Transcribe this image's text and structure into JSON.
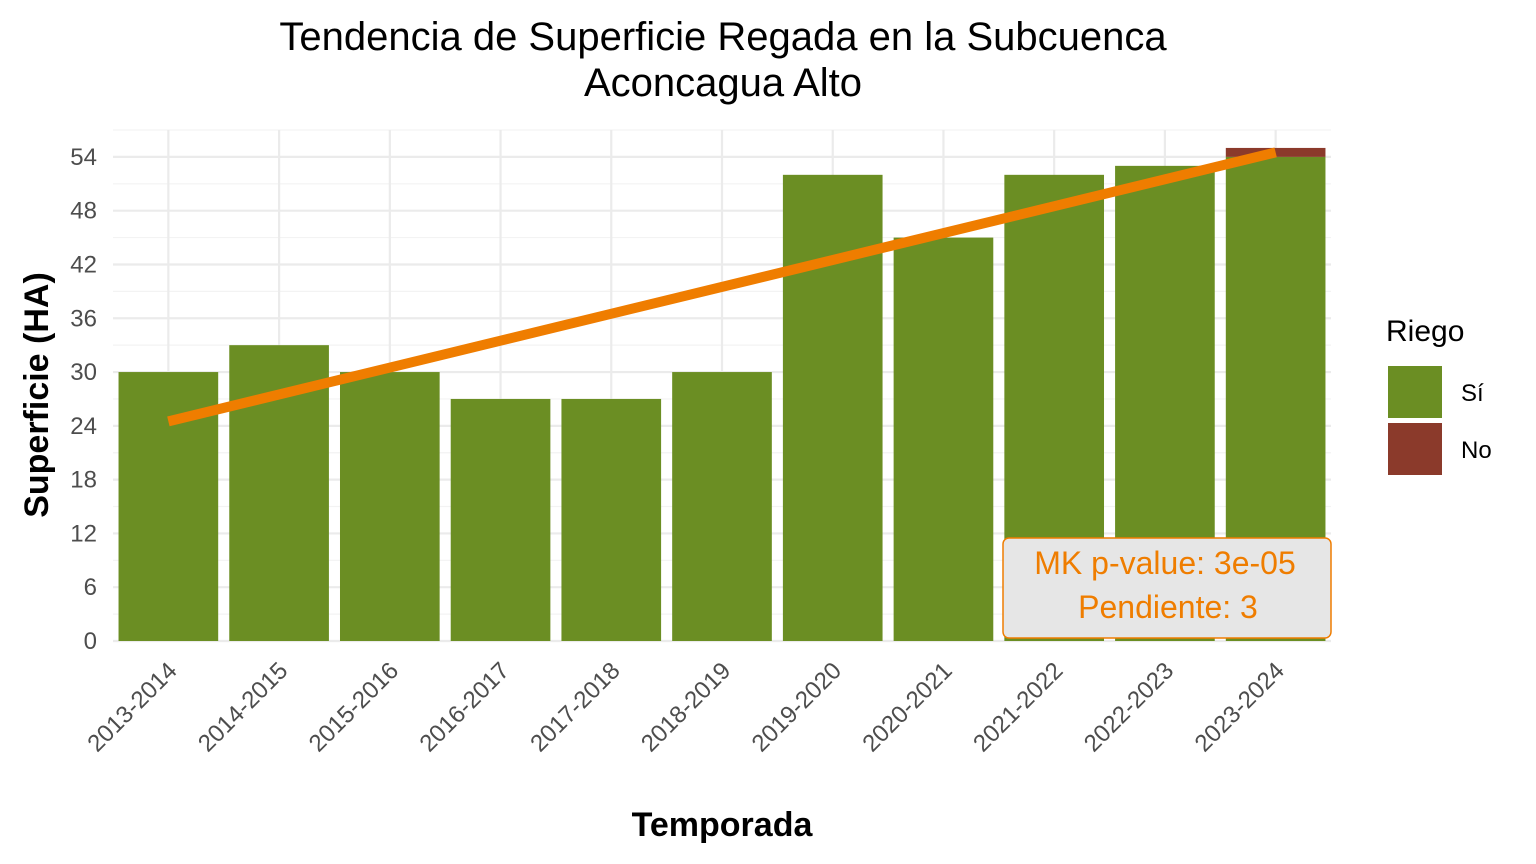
{
  "chart_data": {
    "type": "bar",
    "title_lines": [
      "Tendencia de Superficie Regada en la Subcuenca",
      "Aconcagua Alto"
    ],
    "xlabel": "Temporada",
    "ylabel": "Superficie (HA)",
    "ylim": [
      0,
      57
    ],
    "yticks": [
      0,
      6,
      12,
      18,
      24,
      30,
      36,
      42,
      48,
      54
    ],
    "grid": true,
    "stacked": true,
    "categories": [
      "2013-2014",
      "2014-2015",
      "2015-2016",
      "2016-2017",
      "2017-2018",
      "2018-2019",
      "2019-2020",
      "2020-2021",
      "2021-2022",
      "2022-2023",
      "2023-2024"
    ],
    "series": [
      {
        "name": "Sí",
        "color": "#6b8e23",
        "values": [
          30,
          33,
          30,
          27,
          27,
          30,
          52,
          45,
          52,
          53,
          54
        ]
      },
      {
        "name": "No",
        "color": "#8b3a2b",
        "values": [
          0,
          0,
          0,
          0,
          0,
          0,
          0,
          0,
          0,
          0,
          1
        ]
      }
    ],
    "legend": {
      "title": "Riego",
      "position": "right"
    },
    "trend_line": {
      "color": "#ef7d00",
      "start": 24.5,
      "end": 54.5
    },
    "annotation": {
      "lines": [
        "MK p-value: 3e-05",
        "Pendiente: 3"
      ],
      "color": "#ef7d00",
      "position": "bottom-right"
    }
  }
}
